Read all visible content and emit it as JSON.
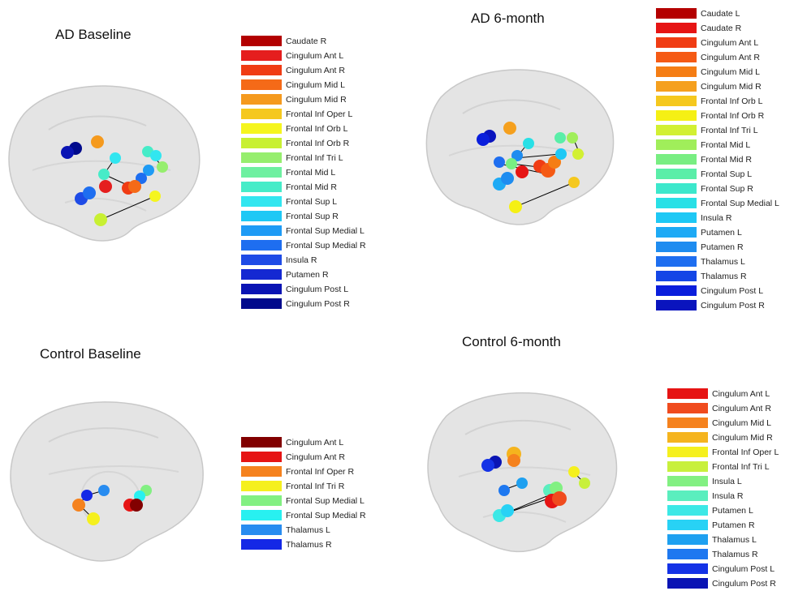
{
  "panels": [
    {
      "id": "ad-baseline",
      "title": "AD Baseline",
      "legend": [
        {
          "label": "Caudate R",
          "color": "#b30000"
        },
        {
          "label": "Cingulum Ant L",
          "color": "#e51e1e"
        },
        {
          "label": "Cingulum Ant R",
          "color": "#f03c14"
        },
        {
          "label": "Cingulum Mid L",
          "color": "#f56a18"
        },
        {
          "label": "Cingulum Mid R",
          "color": "#f59a1e"
        },
        {
          "label": "Frontal Inf Oper L",
          "color": "#f5c81e"
        },
        {
          "label": "Frontal Inf Orb L",
          "color": "#f5f51e"
        },
        {
          "label": "Frontal Inf Orb R",
          "color": "#c8f032"
        },
        {
          "label": "Frontal Inf Tri L",
          "color": "#96ee6e"
        },
        {
          "label": "Frontal Mid L",
          "color": "#6ef0a0"
        },
        {
          "label": "Frontal Mid R",
          "color": "#46ecc8"
        },
        {
          "label": "Frontal Sup L",
          "color": "#32e6f0"
        },
        {
          "label": "Frontal Sup R",
          "color": "#1ec8f5"
        },
        {
          "label": "Frontal Sup Medial L",
          "color": "#1e9bf5"
        },
        {
          "label": "Frontal Sup Medial R",
          "color": "#1e6ef0"
        },
        {
          "label": "Insula R",
          "color": "#1e4be6"
        },
        {
          "label": "Putamen R",
          "color": "#1428d2"
        },
        {
          "label": "Cingulum Post L",
          "color": "#0a14b4"
        },
        {
          "label": "Cingulum Post R",
          "color": "#000a8c"
        }
      ]
    },
    {
      "id": "ad-6month",
      "title": "AD 6-month",
      "legend": [
        {
          "label": "Caudate L",
          "color": "#b40000"
        },
        {
          "label": "Caudate R",
          "color": "#e61414"
        },
        {
          "label": "Cingulum Ant L",
          "color": "#f03c14"
        },
        {
          "label": "Cingulum Ant R",
          "color": "#f55a14"
        },
        {
          "label": "Cingulum Mid L",
          "color": "#f57d14"
        },
        {
          "label": "Cingulum Mid R",
          "color": "#f5a01e"
        },
        {
          "label": "Frontal Inf Orb L",
          "color": "#f5c81e"
        },
        {
          "label": "Frontal Inf Orb R",
          "color": "#f5f014"
        },
        {
          "label": "Frontal Inf Tri L",
          "color": "#d2f032"
        },
        {
          "label": "Frontal Mid L",
          "color": "#a0ee5a"
        },
        {
          "label": "Frontal Mid R",
          "color": "#78ee82"
        },
        {
          "label": "Frontal Sup L",
          "color": "#5aeea8"
        },
        {
          "label": "Frontal Sup R",
          "color": "#3ce8cc"
        },
        {
          "label": "Frontal Sup Medial L",
          "color": "#28e0e6"
        },
        {
          "label": "Insula R",
          "color": "#1ec8f5"
        },
        {
          "label": "Putamen L",
          "color": "#1eaaf5"
        },
        {
          "label": "Putamen R",
          "color": "#1e8cf0"
        },
        {
          "label": "Thalamus L",
          "color": "#1e6ef0"
        },
        {
          "label": "Thalamus R",
          "color": "#1446e6"
        },
        {
          "label": "Cingulum Post L",
          "color": "#0a1edc"
        },
        {
          "label": "Cingulum Post R",
          "color": "#0a14be"
        }
      ]
    },
    {
      "id": "control-baseline",
      "title": "Control Baseline",
      "legend": [
        {
          "label": "Cingulum Ant L",
          "color": "#820000"
        },
        {
          "label": "Cingulum Ant R",
          "color": "#e61414"
        },
        {
          "label": "Frontal Inf Oper R",
          "color": "#f5821e"
        },
        {
          "label": "Frontal Inf Tri R",
          "color": "#f5f01e"
        },
        {
          "label": "Frontal Sup Medial L",
          "color": "#82f082"
        },
        {
          "label": "Frontal Sup Medial R",
          "color": "#28f0f0"
        },
        {
          "label": "Thalamus L",
          "color": "#288cf0"
        },
        {
          "label": "Thalamus R",
          "color": "#1428e6"
        }
      ]
    },
    {
      "id": "control-6month",
      "title": "Control 6-month",
      "legend": [
        {
          "label": "Cingulum Ant L",
          "color": "#e61414"
        },
        {
          "label": "Cingulum Ant R",
          "color": "#f04b1e"
        },
        {
          "label": "Cingulum Mid L",
          "color": "#f5821e"
        },
        {
          "label": "Cingulum Mid R",
          "color": "#f5b41e"
        },
        {
          "label": "Frontal Inf Oper L",
          "color": "#f5f01e"
        },
        {
          "label": "Frontal Inf Tri L",
          "color": "#c8f03c"
        },
        {
          "label": "Insula L",
          "color": "#82f082"
        },
        {
          "label": "Insula R",
          "color": "#5aeebe"
        },
        {
          "label": "Putamen L",
          "color": "#3ce8e6"
        },
        {
          "label": "Putamen R",
          "color": "#28d2f5"
        },
        {
          "label": "Thalamus L",
          "color": "#1ea0f0"
        },
        {
          "label": "Thalamus R",
          "color": "#1e78f0"
        },
        {
          "label": "Cingulum Post L",
          "color": "#1432e6"
        },
        {
          "label": "Cingulum Post R",
          "color": "#0a14b4"
        }
      ]
    }
  ]
}
